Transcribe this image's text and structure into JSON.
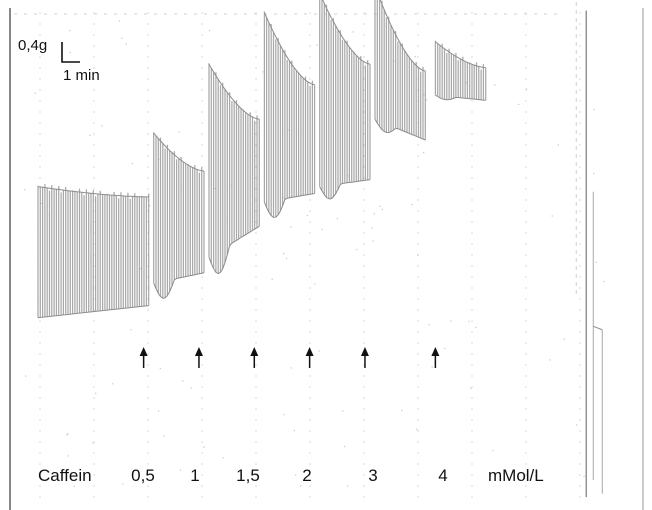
{
  "colors": {
    "trace": "#a9a9a9",
    "trace_dark": "#8c8c8c",
    "frame": "#555555",
    "grid": "#d2d2d2",
    "text": "#111111",
    "arrow": "#111111"
  },
  "scale_bar": {
    "force_label": "0,4g",
    "time_label": "1 min"
  },
  "concentration": {
    "drug_label": "Caffein",
    "unit_label": "mMol/L"
  },
  "chart_data": {
    "type": "area",
    "title": "",
    "xlabel": "",
    "ylabel": "",
    "x_units": "min",
    "y_units": "g",
    "grid": true,
    "additions": [
      {
        "label": "0,5",
        "t": 2.1
      },
      {
        "label": "1",
        "t": 3.2
      },
      {
        "label": "1,5",
        "t": 4.3
      },
      {
        "label": "2",
        "t": 5.4
      },
      {
        "label": "3",
        "t": 6.5
      },
      {
        "label": "4",
        "t": 7.9
      }
    ],
    "segments": [
      {
        "t_start": 0.0,
        "t_end": 2.2,
        "peak_start": 0.93,
        "peak_end": 0.87,
        "trough_start": 0.17,
        "trough_end": 0.24,
        "dip": 0.0
      },
      {
        "t_start": 2.3,
        "t_end": 3.3,
        "peak_start": 1.24,
        "peak_end": 1.02,
        "trough_start": 0.37,
        "trough_end": 0.43,
        "dip": 0.1
      },
      {
        "t_start": 3.4,
        "t_end": 4.4,
        "peak_start": 1.64,
        "peak_end": 1.32,
        "trough_start": 0.52,
        "trough_end": 0.7,
        "dip": 0.13
      },
      {
        "t_start": 4.5,
        "t_end": 5.5,
        "peak_start": 1.94,
        "peak_end": 1.52,
        "trough_start": 0.84,
        "trough_end": 0.89,
        "dip": 0.1
      },
      {
        "t_start": 5.6,
        "t_end": 6.6,
        "peak_start": 2.05,
        "peak_end": 1.64,
        "trough_start": 0.93,
        "trough_end": 0.97,
        "dip": 0.08
      },
      {
        "t_start": 6.7,
        "t_end": 7.7,
        "peak_start": 2.09,
        "peak_end": 1.6,
        "trough_start": 1.32,
        "trough_end": 1.2,
        "dip": 0.05
      },
      {
        "t_start": 7.9,
        "t_end": 8.9,
        "peak_start": 1.77,
        "peak_end": 1.62,
        "trough_start": 1.46,
        "trough_end": 1.43,
        "dip": 0.02
      }
    ],
    "tail": {
      "t_drop": 10.9,
      "trough": -0.87,
      "final": -0.35
    }
  }
}
